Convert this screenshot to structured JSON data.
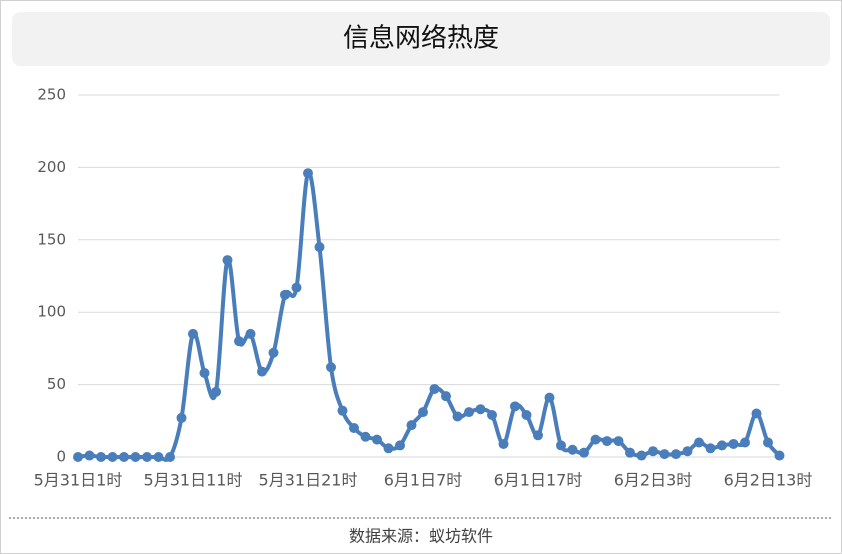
{
  "chart_data": {
    "type": "line",
    "title": "信息网络热度",
    "source": "数据来源：蚁坊软件",
    "categories": [
      "5月31日1时",
      null,
      null,
      null,
      null,
      null,
      null,
      null,
      null,
      null,
      "5月31日11时",
      null,
      null,
      null,
      null,
      null,
      null,
      null,
      null,
      null,
      "5月31日21时",
      null,
      null,
      null,
      null,
      null,
      null,
      null,
      null,
      null,
      "6月1日7时",
      null,
      null,
      null,
      null,
      null,
      null,
      null,
      null,
      null,
      "6月1日17时",
      null,
      null,
      null,
      null,
      null,
      null,
      null,
      null,
      null,
      "6月2日3时",
      null,
      null,
      null,
      null,
      null,
      null,
      null,
      null,
      null,
      "6月2日13时",
      null
    ],
    "values": [
      0,
      1,
      0,
      0,
      0,
      0,
      0,
      0,
      0,
      27,
      85,
      58,
      45,
      136,
      80,
      85,
      59,
      72,
      112,
      117,
      196,
      145,
      62,
      32,
      20,
      14,
      12,
      6,
      8,
      22,
      31,
      47,
      42,
      28,
      31,
      33,
      29,
      9,
      35,
      29,
      15,
      41,
      8,
      5,
      3,
      12,
      11,
      11,
      3,
      1,
      4,
      2,
      2,
      4,
      10,
      6,
      8,
      9,
      10,
      30,
      10,
      1
    ],
    "color": "#4a7ebb",
    "ylim": [
      0,
      250
    ],
    "yticks": [
      0,
      50,
      100,
      150,
      200,
      250
    ],
    "grid": true
  }
}
